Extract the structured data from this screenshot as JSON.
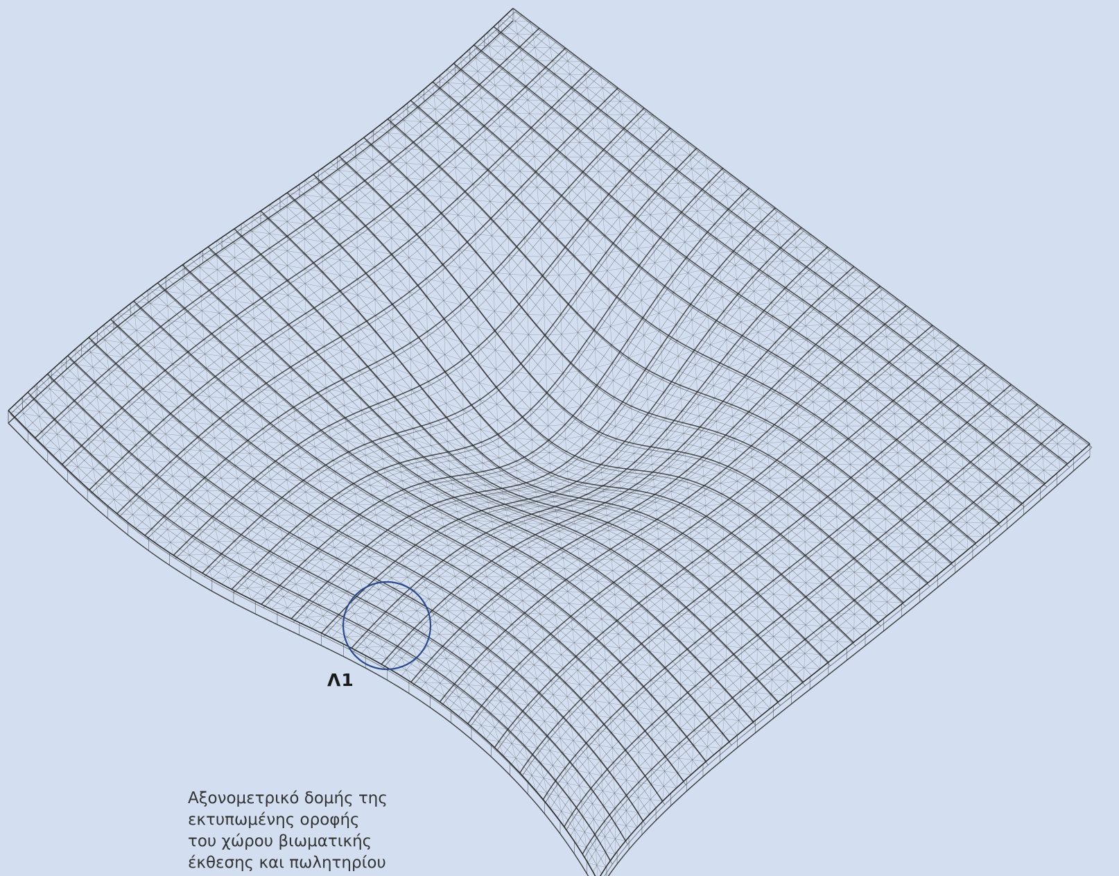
{
  "callout": {
    "label": "Λ1",
    "circle_color": "#2b4a8b"
  },
  "caption": {
    "lines": [
      "Αξονομετρικό δομής της",
      "εκτυπωμένης οροφής",
      "του χώρου βιωματικής",
      "έκθεσης και πωλητηρίου"
    ]
  },
  "colors": {
    "background": "#d3dff0",
    "linework": "#2a2a2a"
  }
}
